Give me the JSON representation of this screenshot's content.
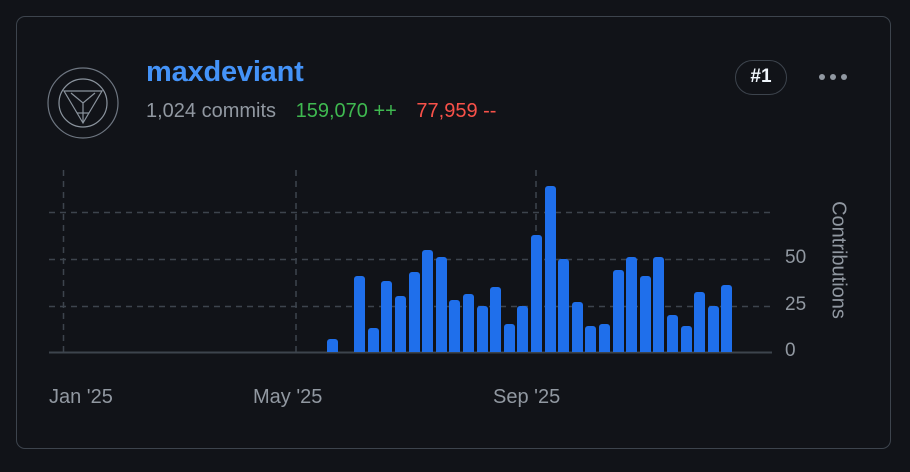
{
  "card": {
    "username": "maxdeviant",
    "commits": "1,024 commits",
    "additions": "159,070 ++",
    "deletions": "77,959 --",
    "rank": "#1",
    "avatar_icon": "avatar-geometric-icon",
    "menu_icon": "kebab-horizontal-icon"
  },
  "colors": {
    "background": "#111318",
    "border": "#3d444d",
    "username": "#4493f8",
    "muted_text": "#9198a1",
    "additions": "#3fb950",
    "deletions": "#f85149",
    "bar": "#1f6feb",
    "grid": "#3d444d"
  },
  "chart_data": {
    "type": "bar",
    "title": "",
    "xlabel": "",
    "ylabel": "Contributions",
    "ylim": [
      0,
      90
    ],
    "yticks": [
      0,
      25,
      50
    ],
    "gridlines_y": [
      25,
      50,
      75
    ],
    "xtick_labels": [
      "Jan '25",
      "May '25",
      "Sep '25"
    ],
    "grid": true,
    "legend": null,
    "x_granularity": "weekly",
    "series": [
      {
        "name": "Contributions",
        "values": [
          7,
          0,
          41,
          13,
          38,
          30,
          43,
          55,
          51,
          28,
          31,
          25,
          35,
          15,
          25,
          63,
          89,
          50,
          27,
          14,
          15,
          44,
          51,
          41,
          51,
          20,
          14,
          32,
          25,
          36
        ]
      }
    ]
  },
  "axis": {
    "y_label": "Contributions",
    "y_ticks": [
      "50",
      "25",
      "0"
    ],
    "x_ticks": [
      "Jan '25",
      "May '25",
      "Sep '25"
    ]
  }
}
